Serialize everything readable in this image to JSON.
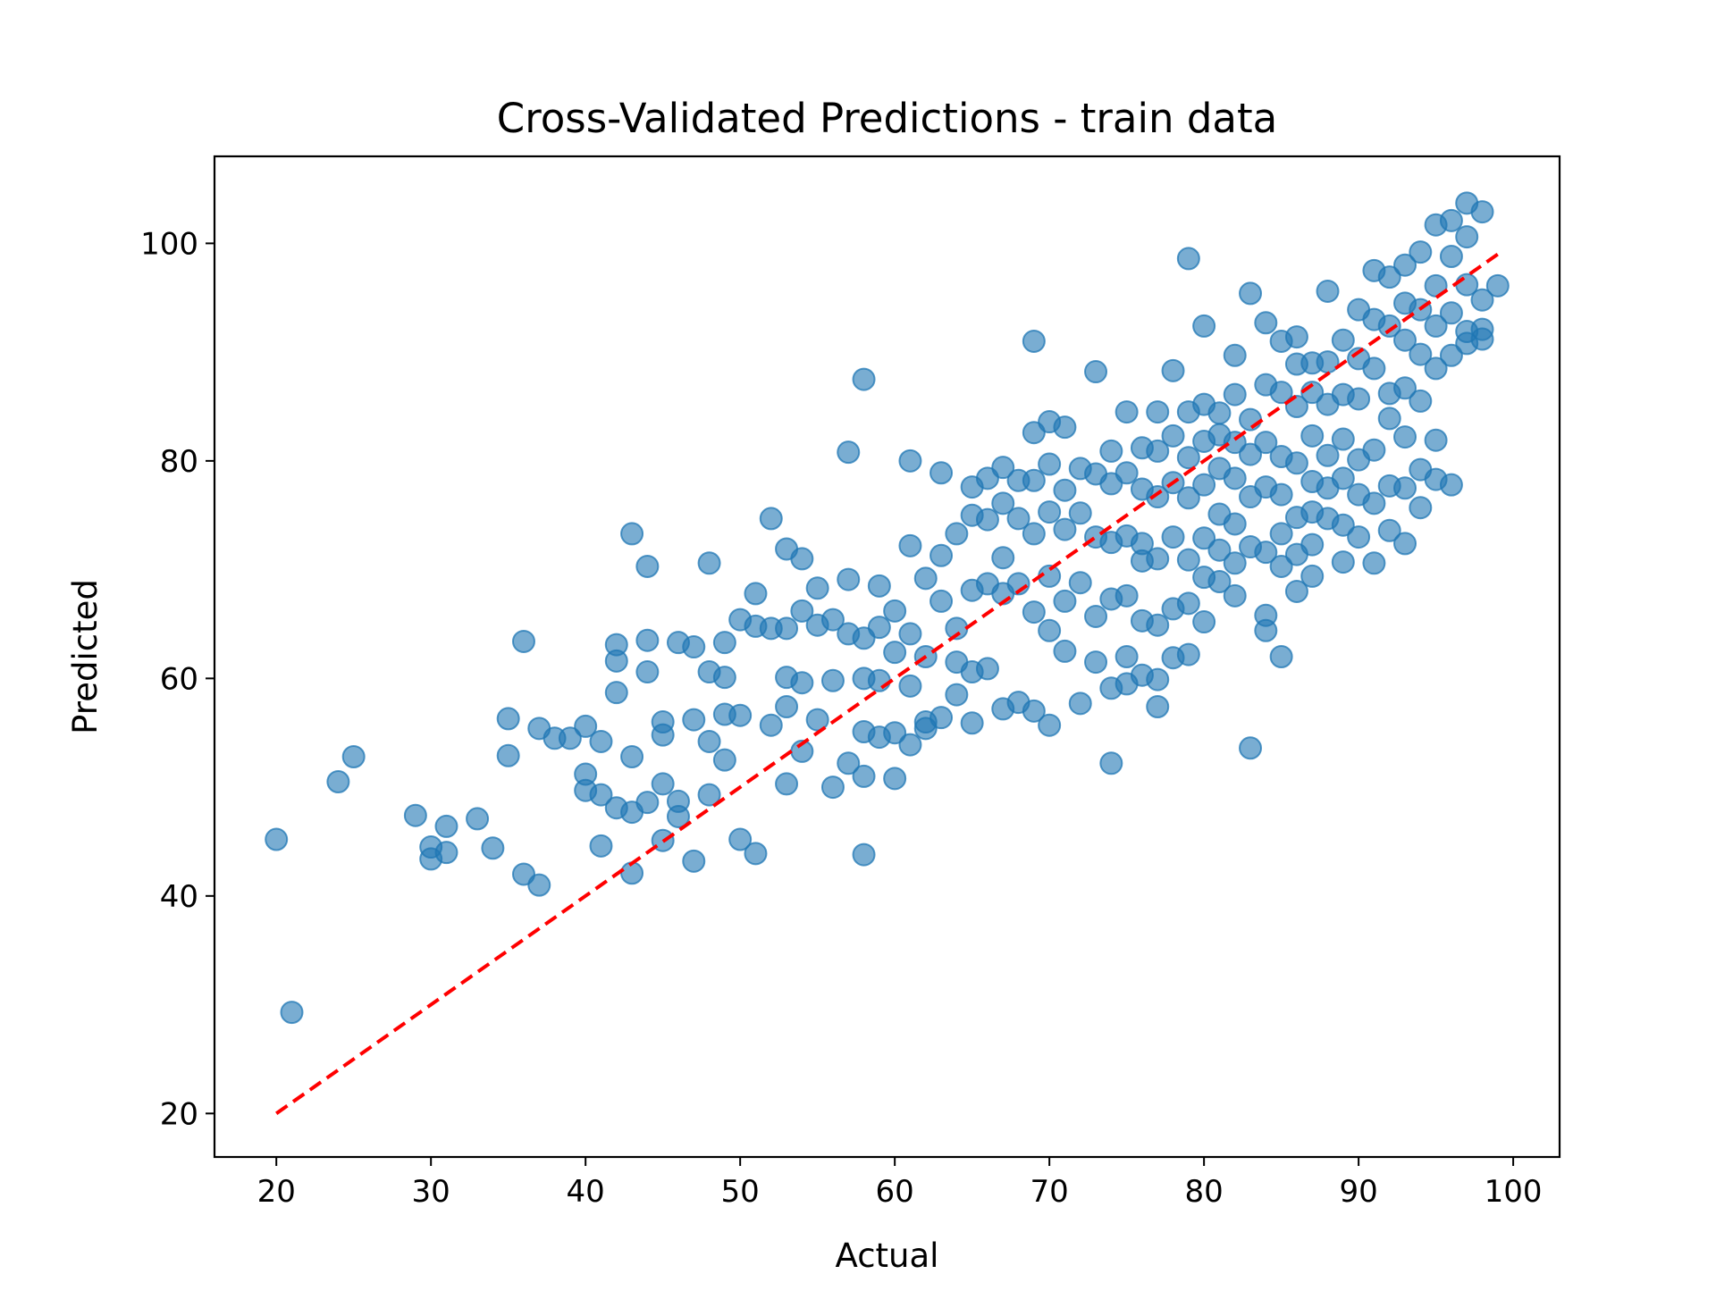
{
  "chart_data": {
    "type": "scatter",
    "title": "Cross-Validated Predictions -  train data",
    "xlabel": "Actual",
    "ylabel": "Predicted",
    "xlim": [
      16,
      103
    ],
    "ylim": [
      16,
      108
    ],
    "xticks": [
      20,
      30,
      40,
      50,
      60,
      70,
      80,
      90,
      100
    ],
    "yticks": [
      20,
      40,
      60,
      80,
      100
    ],
    "grid": false,
    "legend": "none",
    "colors": {
      "points": "#1f77b4",
      "reference_line": "#ff0000"
    },
    "reference_line": {
      "name": "y = x",
      "style": "dashed",
      "x": [
        20,
        99
      ],
      "y": [
        20,
        99
      ]
    },
    "series": [
      {
        "name": "cross-validated predictions",
        "x": [
          20,
          21,
          24,
          25,
          29,
          30,
          30,
          31,
          31,
          33,
          34,
          35,
          35,
          36,
          36,
          37,
          37,
          38,
          39,
          40,
          40,
          40,
          41,
          41,
          41,
          42,
          42,
          42,
          42,
          43,
          43,
          43,
          43,
          44,
          44,
          44,
          44,
          45,
          45,
          45,
          45,
          46,
          46,
          46,
          47,
          47,
          47,
          48,
          48,
          48,
          48,
          49,
          49,
          49,
          49,
          50,
          50,
          50,
          51,
          51,
          51,
          52,
          52,
          52,
          53,
          53,
          53,
          53,
          53,
          54,
          54,
          54,
          54,
          55,
          55,
          55,
          56,
          56,
          56,
          57,
          57,
          57,
          57,
          58,
          58,
          58,
          58,
          58,
          58,
          59,
          59,
          59,
          59,
          60,
          60,
          60,
          60,
          61,
          61,
          61,
          61,
          61,
          62,
          62,
          62,
          62,
          63,
          63,
          63,
          63,
          64,
          64,
          64,
          64,
          65,
          65,
          65,
          65,
          65,
          66,
          66,
          66,
          66,
          67,
          67,
          67,
          67,
          67,
          68,
          68,
          68,
          68,
          69,
          69,
          69,
          69,
          69,
          69,
          70,
          70,
          70,
          70,
          70,
          70,
          71,
          71,
          71,
          71,
          71,
          72,
          72,
          72,
          72,
          73,
          73,
          73,
          73,
          73,
          74,
          74,
          74,
          74,
          74,
          74,
          75,
          75,
          75,
          75,
          75,
          75,
          76,
          76,
          76,
          76,
          76,
          76,
          77,
          77,
          77,
          77,
          77,
          77,
          77,
          78,
          78,
          78,
          78,
          78,
          78,
          79,
          79,
          79,
          79,
          79,
          79,
          79,
          80,
          80,
          80,
          80,
          80,
          80,
          80,
          81,
          81,
          81,
          81,
          81,
          81,
          82,
          82,
          82,
          82,
          82,
          82,
          82,
          83,
          83,
          83,
          83,
          83,
          83,
          84,
          84,
          84,
          84,
          84,
          84,
          84,
          85,
          85,
          85,
          85,
          85,
          85,
          85,
          86,
          86,
          86,
          86,
          86,
          86,
          86,
          87,
          87,
          87,
          87,
          87,
          87,
          87,
          88,
          88,
          88,
          88,
          88,
          88,
          89,
          89,
          89,
          89,
          89,
          89,
          90,
          90,
          90,
          90,
          90,
          90,
          91,
          91,
          91,
          91,
          91,
          91,
          92,
          92,
          92,
          92,
          92,
          92,
          93,
          93,
          93,
          93,
          93,
          93,
          93,
          94,
          94,
          94,
          94,
          94,
          94,
          95,
          95,
          95,
          95,
          95,
          95,
          96,
          96,
          96,
          96,
          96,
          97,
          97,
          97,
          97,
          97,
          98,
          98,
          98,
          98,
          99
        ],
        "y": [
          45.2,
          29.3,
          50.5,
          52.8,
          47.4,
          43.4,
          44.5,
          46.4,
          44.0,
          47.1,
          44.4,
          56.3,
          52.9,
          63.4,
          42.0,
          55.4,
          41.0,
          54.5,
          54.5,
          55.6,
          51.2,
          49.7,
          49.3,
          54.2,
          44.6,
          63.1,
          61.6,
          58.7,
          48.1,
          73.3,
          52.8,
          47.7,
          42.1,
          70.3,
          63.5,
          60.6,
          48.6,
          56.0,
          54.8,
          50.3,
          45.1,
          63.3,
          48.7,
          47.3,
          62.9,
          56.2,
          43.2,
          70.6,
          60.6,
          54.2,
          49.3,
          63.3,
          60.1,
          56.7,
          52.5,
          65.4,
          56.6,
          45.2,
          67.8,
          64.8,
          43.9,
          74.7,
          64.6,
          55.7,
          71.9,
          64.6,
          60.1,
          57.4,
          50.3,
          71.0,
          66.2,
          59.6,
          53.3,
          68.3,
          64.9,
          56.2,
          65.4,
          59.8,
          50.0,
          80.8,
          69.1,
          64.1,
          52.2,
          87.5,
          63.7,
          60.0,
          55.1,
          51.0,
          43.8,
          68.5,
          64.7,
          59.8,
          54.6,
          66.2,
          62.4,
          55.0,
          50.8,
          80.0,
          72.2,
          64.1,
          59.3,
          53.9,
          69.2,
          62.0,
          56.0,
          55.4,
          78.9,
          71.3,
          67.1,
          56.4,
          73.3,
          64.6,
          61.5,
          58.5,
          77.6,
          75.0,
          68.1,
          60.6,
          55.9,
          78.4,
          74.6,
          68.7,
          60.9,
          79.4,
          76.1,
          71.1,
          67.8,
          57.2,
          78.2,
          74.7,
          68.7,
          57.8,
          91.0,
          82.6,
          78.2,
          73.3,
          66.1,
          57.0,
          83.6,
          79.7,
          75.3,
          69.4,
          64.4,
          55.7,
          83.1,
          77.3,
          73.7,
          67.1,
          62.5,
          79.3,
          75.2,
          68.8,
          57.7,
          88.2,
          78.8,
          73.0,
          65.7,
          61.5,
          80.9,
          77.9,
          72.5,
          67.3,
          59.1,
          52.2,
          84.5,
          78.9,
          73.1,
          67.6,
          62.0,
          59.5,
          81.2,
          77.4,
          72.4,
          70.8,
          65.3,
          60.3,
          84.5,
          80.9,
          76.7,
          71.0,
          64.9,
          59.9,
          57.4,
          88.3,
          82.3,
          78.0,
          73.0,
          66.4,
          61.9,
          98.6,
          84.5,
          80.3,
          76.6,
          70.9,
          66.9,
          62.2,
          92.4,
          85.2,
          81.8,
          77.8,
          72.9,
          69.3,
          65.2,
          84.4,
          82.4,
          79.3,
          75.1,
          71.8,
          68.9,
          89.7,
          86.1,
          81.7,
          78.4,
          74.2,
          70.6,
          67.6,
          95.4,
          83.8,
          80.6,
          76.7,
          72.1,
          53.6,
          92.7,
          87.0,
          81.7,
          77.6,
          71.6,
          65.8,
          64.4,
          91.0,
          86.3,
          80.4,
          76.9,
          73.3,
          70.3,
          62.0,
          91.4,
          88.9,
          85.0,
          79.8,
          74.8,
          71.4,
          68.0,
          89.0,
          86.3,
          82.3,
          78.1,
          75.3,
          72.3,
          69.4,
          95.6,
          89.1,
          85.2,
          80.5,
          77.5,
          74.7,
          91.1,
          86.1,
          82.0,
          78.4,
          74.1,
          70.7,
          93.9,
          89.4,
          85.7,
          80.1,
          76.9,
          73.0,
          97.5,
          93.0,
          88.5,
          81.0,
          76.1,
          70.6,
          96.9,
          92.4,
          86.2,
          83.9,
          77.7,
          73.6,
          98.0,
          94.5,
          91.1,
          86.7,
          82.2,
          77.5,
          72.4,
          99.2,
          93.9,
          89.8,
          85.5,
          79.2,
          75.7,
          101.7,
          96.1,
          92.4,
          88.5,
          81.9,
          78.3,
          102.1,
          98.8,
          93.6,
          89.7,
          77.8,
          103.7,
          100.6,
          96.2,
          91.9,
          90.8,
          102.9,
          94.8,
          92.1,
          91.2,
          96.1
        ]
      }
    ]
  }
}
